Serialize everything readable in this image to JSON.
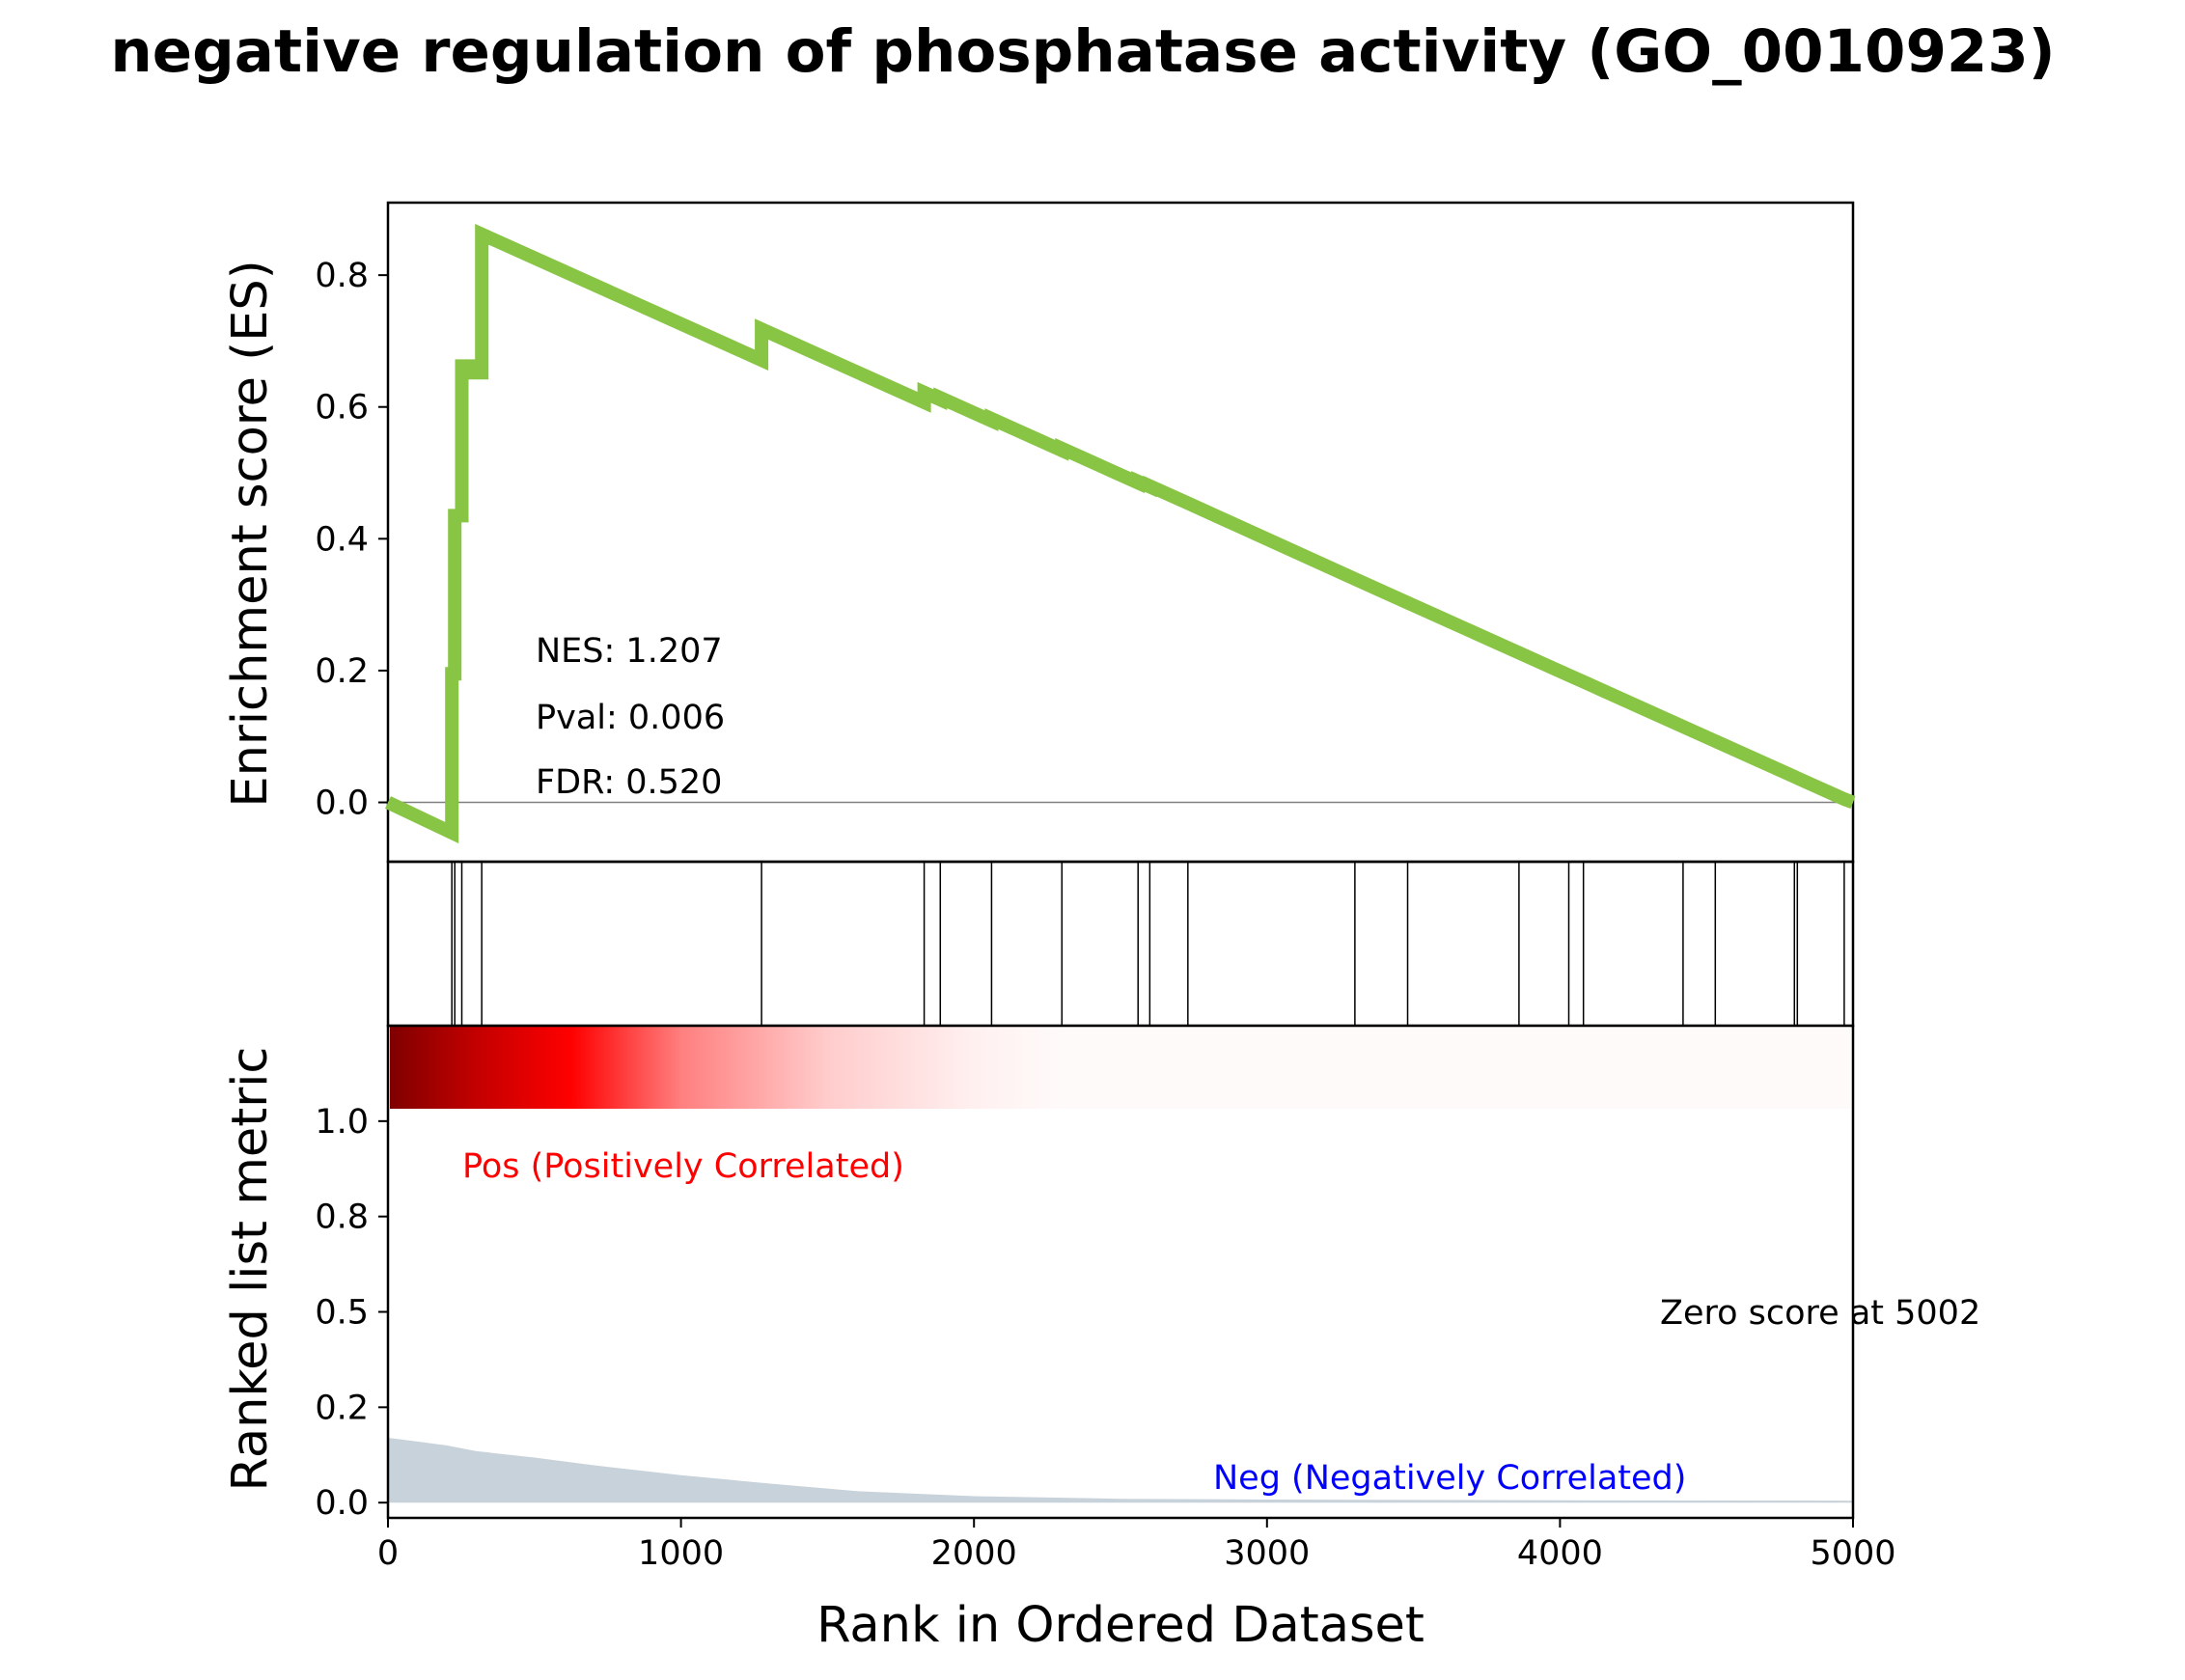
{
  "chart_data": {
    "type": "line",
    "title": "negative regulation of phosphatase activity (GO_0010923)",
    "es_panel": {
      "ylabel": "Enrichment score (ES)",
      "ylim": [
        -0.09,
        0.91
      ],
      "yticks": [
        0.0,
        0.2,
        0.4,
        0.6,
        0.8
      ],
      "ytick_labels": [
        "0.0",
        "0.2",
        "0.4",
        "0.6",
        "0.8"
      ],
      "line_color": "#88c544",
      "zero_line_color": "#808080",
      "points": [
        [
          0,
          0.0
        ],
        [
          218,
          -0.046
        ],
        [
          218,
          0.195
        ],
        [
          228,
          0.195
        ],
        [
          228,
          0.435
        ],
        [
          252,
          0.435
        ],
        [
          252,
          0.662
        ],
        [
          274,
          0.662
        ],
        [
          274,
          0.652
        ],
        [
          320,
          0.652
        ],
        [
          320,
          0.862
        ],
        [
          1275,
          0.671
        ],
        [
          1275,
          0.718
        ],
        [
          1830,
          0.607
        ],
        [
          1830,
          0.622
        ],
        [
          1885,
          0.611
        ],
        [
          1885,
          0.614
        ],
        [
          2060,
          0.579
        ],
        [
          2060,
          0.582
        ],
        [
          2300,
          0.534
        ],
        [
          2300,
          0.537
        ],
        [
          2560,
          0.485
        ],
        [
          2560,
          0.487
        ],
        [
          2600,
          0.479
        ],
        [
          2600,
          0.48
        ],
        [
          2730,
          0.454
        ],
        [
          3300,
          0.339
        ],
        [
          3480,
          0.303
        ],
        [
          3860,
          0.227
        ],
        [
          4030,
          0.193
        ],
        [
          4080,
          0.183
        ],
        [
          4420,
          0.115
        ],
        [
          4530,
          0.093
        ],
        [
          4800,
          0.039
        ],
        [
          4810,
          0.037
        ],
        [
          4970,
          0.005
        ],
        [
          5000,
          0.0
        ]
      ],
      "stats": [
        "NES: 1.207",
        "Pval: 0.006",
        "FDR: 0.520"
      ]
    },
    "hits_panel": {
      "hit_ranks": [
        218,
        228,
        252,
        320,
        1275,
        1830,
        1885,
        2060,
        2300,
        2560,
        2600,
        2730,
        3300,
        3480,
        3860,
        4030,
        4080,
        4420,
        4530,
        4800,
        4810,
        4970
      ]
    },
    "metric_panel": {
      "ylabel": "Ranked list metric",
      "ylim": [
        -0.04,
        1.25
      ],
      "yticks": [
        0.0,
        0.25,
        0.5,
        0.75,
        1.0
      ],
      "ytick_labels": [
        "0.0",
        "0.2",
        "0.5",
        "0.8",
        "1.0"
      ],
      "fill_color": "#c8d2da",
      "metric_curve": [
        [
          0,
          0.17
        ],
        [
          100,
          0.16
        ],
        [
          200,
          0.15
        ],
        [
          300,
          0.135
        ],
        [
          500,
          0.118
        ],
        [
          700,
          0.098
        ],
        [
          1000,
          0.072
        ],
        [
          1300,
          0.05
        ],
        [
          1600,
          0.03
        ],
        [
          2000,
          0.017
        ],
        [
          2500,
          0.01
        ],
        [
          3000,
          0.008
        ],
        [
          3500,
          0.007
        ],
        [
          4000,
          0.006
        ],
        [
          5000,
          0.005
        ]
      ],
      "pos_label": "Pos (Positively Correlated)",
      "neg_label": "Neg (Negatively Correlated)",
      "zero_score_label": "Zero score at 5002",
      "pos_label_color": "#ff0000",
      "neg_label_color": "#0000ff",
      "heatmap_gradient": [
        [
          0,
          "#7f0000"
        ],
        [
          300,
          "#c40000"
        ],
        [
          620,
          "#ff0000"
        ],
        [
          1000,
          "#ff8080"
        ],
        [
          1500,
          "#ffcccc"
        ],
        [
          2000,
          "#fff0f0"
        ],
        [
          2300,
          "#fffafa"
        ],
        [
          5000,
          "#fffafa"
        ]
      ]
    },
    "x_axis": {
      "xlabel": "Rank in Ordered Dataset",
      "xlim": [
        0,
        5000
      ],
      "xticks": [
        0,
        1000,
        2000,
        3000,
        4000,
        5000
      ],
      "xtick_labels": [
        "0",
        "1000",
        "2000",
        "3000",
        "4000",
        "5000"
      ]
    }
  }
}
